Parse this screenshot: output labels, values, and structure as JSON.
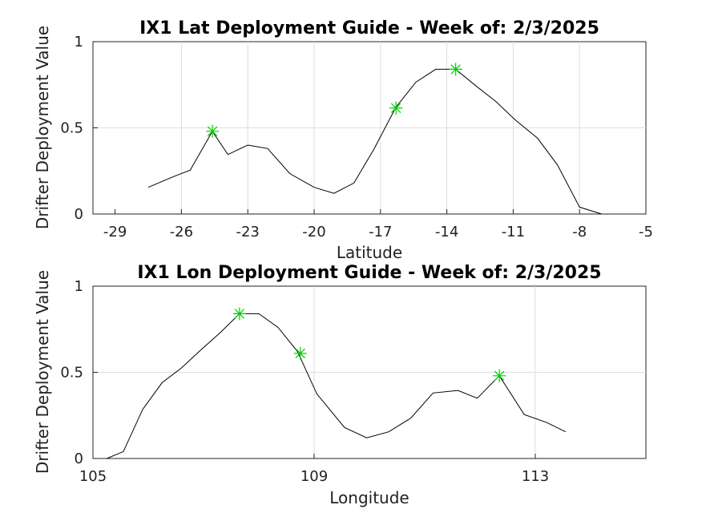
{
  "chart_data": [
    {
      "type": "line",
      "title": "IX1 Lat Deployment Guide - Week of: 2/3/2025",
      "xlabel": "Latitude",
      "ylabel": "Drifter Deployment Value",
      "xlim": [
        -30,
        -5
      ],
      "ylim": [
        0,
        1
      ],
      "xticks": [
        -29,
        -26,
        -23,
        -20,
        -17,
        -14,
        -11,
        -8,
        -5
      ],
      "yticks": [
        0,
        0.5,
        1
      ],
      "ytick_labels": [
        "0",
        "0.5",
        "1"
      ],
      "grid": true,
      "line_color": "#000000",
      "marker_color": "#00cc00",
      "series": [
        {
          "x": [
            -27.5,
            -26.4,
            -25.6,
            -24.6,
            -23.9,
            -23.0,
            -22.1,
            -21.1,
            -20.0,
            -19.1,
            -18.2,
            -17.3,
            -16.3,
            -15.4,
            -14.5,
            -13.6,
            -12.7,
            -11.8,
            -10.9,
            -9.9,
            -9.0,
            -8.0,
            -7.0
          ],
          "y": [
            0.155,
            0.215,
            0.255,
            0.48,
            0.345,
            0.4,
            0.38,
            0.235,
            0.155,
            0.12,
            0.18,
            0.375,
            0.62,
            0.765,
            0.84,
            0.84,
            0.745,
            0.655,
            0.545,
            0.44,
            0.285,
            0.04,
            0.0
          ]
        }
      ],
      "markers": {
        "x": [
          -24.6,
          -16.3,
          -13.6
        ],
        "y": [
          0.48,
          0.615,
          0.84
        ]
      }
    },
    {
      "type": "line",
      "title": "IX1 Lon Deployment Guide - Week of: 2/3/2025",
      "xlabel": "Longitude",
      "ylabel": "Drifter Deployment Value",
      "xlim": [
        105,
        115
      ],
      "ylim": [
        0,
        1
      ],
      "xticks": [
        105,
        109,
        113
      ],
      "yticks": [
        0,
        0.5,
        1
      ],
      "ytick_labels": [
        "0",
        "0.5",
        "1"
      ],
      "grid": true,
      "line_color": "#000000",
      "marker_color": "#00cc00",
      "series": [
        {
          "x": [
            105.25,
            105.55,
            105.9,
            106.25,
            106.6,
            106.95,
            107.3,
            107.65,
            108.0,
            108.35,
            108.7,
            109.05,
            109.55,
            109.95,
            110.35,
            110.75,
            111.15,
            111.6,
            111.95,
            112.35,
            112.8,
            113.2,
            113.55
          ],
          "y": [
            0.0,
            0.04,
            0.285,
            0.44,
            0.525,
            0.63,
            0.73,
            0.84,
            0.84,
            0.76,
            0.62,
            0.375,
            0.18,
            0.12,
            0.155,
            0.235,
            0.38,
            0.395,
            0.35,
            0.48,
            0.255,
            0.21,
            0.155
          ]
        }
      ],
      "markers": {
        "x": [
          107.65,
          108.75,
          112.35
        ],
        "y": [
          0.84,
          0.61,
          0.48
        ]
      }
    }
  ]
}
